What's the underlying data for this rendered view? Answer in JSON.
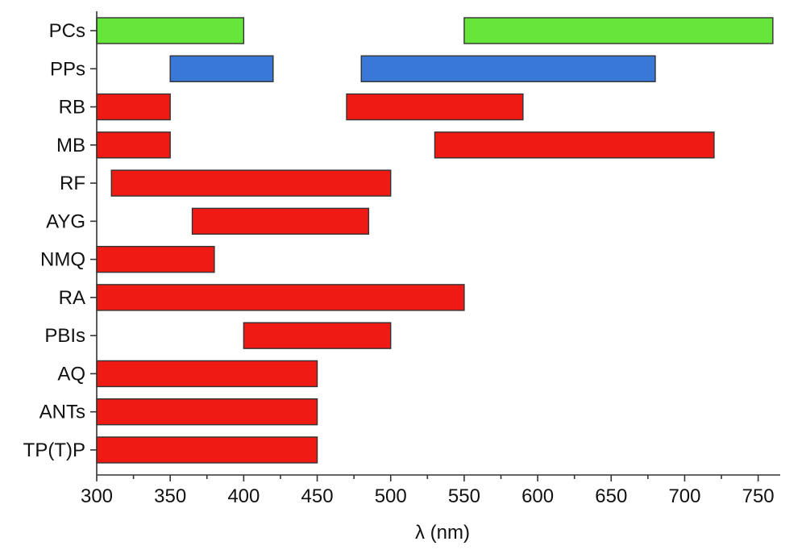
{
  "chart_data": {
    "type": "bar",
    "orientation": "horizontal-range",
    "title": "",
    "xlabel": "λ (nm)",
    "ylabel": "",
    "xlim": [
      300,
      765
    ],
    "xticks": [
      300,
      350,
      400,
      450,
      500,
      550,
      600,
      650,
      700,
      750
    ],
    "grid": false,
    "categories": [
      "PCs",
      "PPs",
      "RB",
      "MB",
      "RF",
      "AYG",
      "NMQ",
      "RA",
      "PBIs",
      "AQ",
      "ANTs",
      "TP(T)P"
    ],
    "ranges": [
      {
        "category": "PCs",
        "color": "#66e63a",
        "segments": [
          [
            300,
            400
          ],
          [
            550,
            760
          ]
        ]
      },
      {
        "category": "PPs",
        "color": "#3a78d8",
        "segments": [
          [
            350,
            420
          ],
          [
            480,
            680
          ]
        ]
      },
      {
        "category": "RB",
        "color": "#f01a14",
        "segments": [
          [
            300,
            350
          ],
          [
            470,
            590
          ]
        ]
      },
      {
        "category": "MB",
        "color": "#f01a14",
        "segments": [
          [
            300,
            350
          ],
          [
            530,
            720
          ]
        ]
      },
      {
        "category": "RF",
        "color": "#f01a14",
        "segments": [
          [
            310,
            500
          ]
        ]
      },
      {
        "category": "AYG",
        "color": "#f01a14",
        "segments": [
          [
            365,
            485
          ]
        ]
      },
      {
        "category": "NMQ",
        "color": "#f01a14",
        "segments": [
          [
            300,
            380
          ]
        ]
      },
      {
        "category": "RA",
        "color": "#f01a14",
        "segments": [
          [
            300,
            550
          ]
        ]
      },
      {
        "category": "PBIs",
        "color": "#f01a14",
        "segments": [
          [
            400,
            500
          ]
        ]
      },
      {
        "category": "AQ",
        "color": "#f01a14",
        "segments": [
          [
            300,
            450
          ]
        ]
      },
      {
        "category": "ANTs",
        "color": "#f01a14",
        "segments": [
          [
            300,
            450
          ]
        ]
      },
      {
        "category": "TP(T)P",
        "color": "#f01a14",
        "segments": [
          [
            300,
            450
          ]
        ]
      }
    ]
  }
}
